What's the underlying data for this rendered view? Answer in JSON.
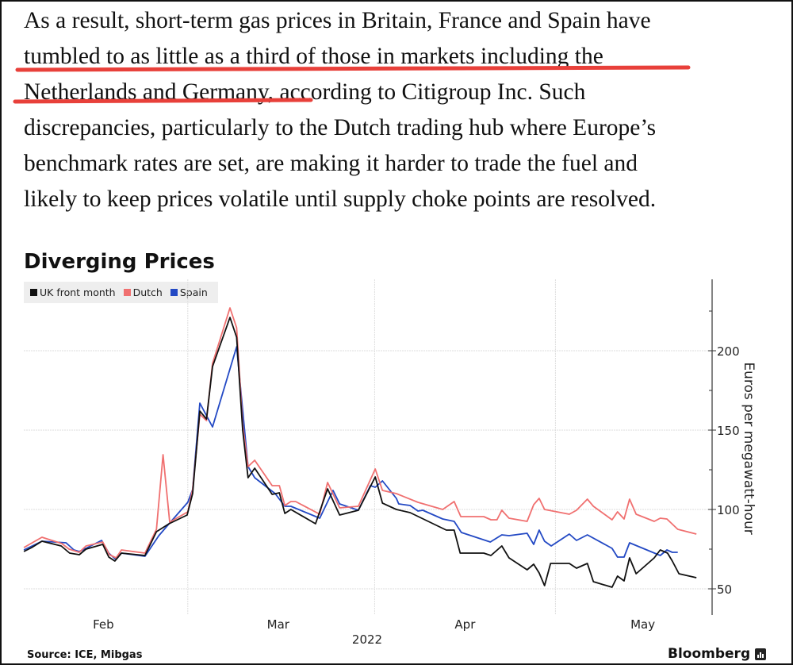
{
  "article": {
    "lines": [
      "As a result, short-term gas prices in Britain, France and Spain have",
      "tumbled to as little as a third of those in markets including the",
      "Netherlands and Germany, according to Citigroup Inc. Such",
      "discrepancies, particularly to the Dutch trading hub where Europe’s",
      "benchmark rates are set, are making it harder to trade the fuel and",
      "likely to keep prices volatile until supply choke points are resolved."
    ],
    "highlight_color": "#e8403a"
  },
  "chart_data": {
    "type": "line",
    "title": "Diverging Prices",
    "ylabel": "Euros per megawatt-hour",
    "xlabel": "2022",
    "x_unit": "days since Feb 1, 2022",
    "ylim": [
      30,
      245
    ],
    "yticks": [
      50,
      100,
      150,
      200
    ],
    "xticks": [
      {
        "label": "Feb",
        "day": 14
      },
      {
        "label": "Mar",
        "day": 43
      },
      {
        "label": "Apr",
        "day": 74
      },
      {
        "label": "May",
        "day": 103.5
      }
    ],
    "x_gridlines_days": [
      28,
      59,
      89
    ],
    "grid": true,
    "legend_position": "top-left",
    "series": [
      {
        "name": "UK front month",
        "color": "#111111",
        "points": [
          [
            0.8,
            73.5
          ],
          [
            2.1,
            76
          ],
          [
            3.8,
            80
          ],
          [
            7,
            77
          ],
          [
            8.4,
            72.5
          ],
          [
            10,
            71.5
          ],
          [
            11.1,
            75
          ],
          [
            13.9,
            78
          ],
          [
            14.9,
            70
          ],
          [
            15.9,
            67.5
          ],
          [
            17,
            72.5
          ],
          [
            20.9,
            71
          ],
          [
            22.8,
            86
          ],
          [
            24.9,
            91
          ],
          [
            27.9,
            96.5
          ],
          [
            28.8,
            110
          ],
          [
            30,
            162
          ],
          [
            31.1,
            157
          ],
          [
            32.1,
            190
          ],
          [
            35,
            221
          ],
          [
            36.1,
            208.5
          ],
          [
            37.1,
            150
          ],
          [
            38,
            120
          ],
          [
            39.1,
            126
          ],
          [
            42,
            109.5
          ],
          [
            43.2,
            110.5
          ],
          [
            44.1,
            97.5
          ],
          [
            45.1,
            100
          ],
          [
            49.2,
            91
          ],
          [
            51.2,
            113
          ],
          [
            53.2,
            96.5
          ],
          [
            56.3,
            99.5
          ],
          [
            59.1,
            120.5
          ],
          [
            60.3,
            104
          ],
          [
            62.6,
            100
          ],
          [
            64.9,
            98
          ],
          [
            70.9,
            87
          ],
          [
            72.2,
            87
          ],
          [
            73.2,
            72.5
          ],
          [
            77.1,
            72.5
          ],
          [
            78.3,
            71
          ],
          [
            80.1,
            77
          ],
          [
            81.3,
            69.5
          ],
          [
            84.3,
            62
          ],
          [
            85.4,
            65.5
          ],
          [
            86.3,
            60
          ],
          [
            87.2,
            52
          ],
          [
            88.2,
            66
          ],
          [
            91.3,
            66
          ],
          [
            92.5,
            63
          ],
          [
            94.3,
            66
          ],
          [
            95.3,
            54.5
          ],
          [
            98.4,
            51
          ],
          [
            99.3,
            58
          ],
          [
            100.4,
            55
          ],
          [
            101.3,
            69.5
          ],
          [
            102.4,
            59.5
          ],
          [
            105.4,
            69.5
          ],
          [
            106.4,
            74.5
          ],
          [
            107.6,
            72.5
          ],
          [
            108.4,
            67.5
          ],
          [
            109.5,
            59.5
          ],
          [
            112.4,
            57
          ]
        ]
      },
      {
        "name": "Dutch",
        "color": "#f07070",
        "points": [
          [
            0.8,
            76
          ],
          [
            3.8,
            82.5
          ],
          [
            7.1,
            78.5
          ],
          [
            8.3,
            75
          ],
          [
            10,
            73
          ],
          [
            11.1,
            77
          ],
          [
            13.9,
            79.5
          ],
          [
            15,
            71.5
          ],
          [
            16.1,
            69.5
          ],
          [
            17,
            74.5
          ],
          [
            20.9,
            72.5
          ],
          [
            22.8,
            87.5
          ],
          [
            23.9,
            134.5
          ],
          [
            25,
            92
          ],
          [
            28,
            98.5
          ],
          [
            28.8,
            112.5
          ],
          [
            30,
            160
          ],
          [
            31.1,
            156
          ],
          [
            32.1,
            192
          ],
          [
            35,
            227
          ],
          [
            36.1,
            214.5
          ],
          [
            37.1,
            153.5
          ],
          [
            38,
            127
          ],
          [
            39.1,
            131
          ],
          [
            42,
            115
          ],
          [
            43.2,
            115
          ],
          [
            44.1,
            102.5
          ],
          [
            45.1,
            105
          ],
          [
            45.9,
            105
          ],
          [
            49.9,
            97
          ],
          [
            51.2,
            117
          ],
          [
            53.2,
            101
          ],
          [
            56.3,
            102
          ],
          [
            59.1,
            125.5
          ],
          [
            60.3,
            112
          ],
          [
            62.6,
            110
          ],
          [
            66.2,
            104.5
          ],
          [
            70.3,
            100
          ],
          [
            72.2,
            105
          ],
          [
            73.3,
            95.5
          ],
          [
            77.1,
            95.5
          ],
          [
            78.3,
            93.5
          ],
          [
            79.3,
            93.5
          ],
          [
            80.1,
            99.5
          ],
          [
            81.3,
            94.5
          ],
          [
            84.3,
            92.5
          ],
          [
            85.4,
            103
          ],
          [
            86.3,
            107
          ],
          [
            87.2,
            100
          ],
          [
            91.3,
            97
          ],
          [
            92.5,
            99.5
          ],
          [
            94.3,
            106.5
          ],
          [
            95.3,
            102
          ],
          [
            98.4,
            93.5
          ],
          [
            99.3,
            98.5
          ],
          [
            100.4,
            94
          ],
          [
            101.3,
            106.5
          ],
          [
            102.4,
            97
          ],
          [
            105.4,
            92.5
          ],
          [
            106.4,
            94.5
          ],
          [
            107.5,
            94
          ],
          [
            109.3,
            87.5
          ],
          [
            112.4,
            84.5
          ]
        ]
      },
      {
        "name": "Spain",
        "color": "#2349c4",
        "points": [
          [
            0.8,
            74.5
          ],
          [
            3.8,
            80
          ],
          [
            7.8,
            79
          ],
          [
            9.1,
            74.5
          ],
          [
            10,
            73.5
          ],
          [
            11.1,
            75.5
          ],
          [
            13.7,
            80.5
          ],
          [
            14.9,
            72.5
          ],
          [
            15.9,
            69
          ],
          [
            17,
            72.5
          ],
          [
            20.9,
            70.5
          ],
          [
            23.2,
            83.5
          ],
          [
            24.9,
            91
          ],
          [
            28,
            104.5
          ],
          [
            28.8,
            112.5
          ],
          [
            30,
            167
          ],
          [
            32.1,
            152
          ],
          [
            36.1,
            202.5
          ],
          [
            38,
            127
          ],
          [
            39.1,
            120
          ],
          [
            42.5,
            110
          ],
          [
            44.1,
            102
          ],
          [
            45.1,
            102
          ],
          [
            49.9,
            94.5
          ],
          [
            52.1,
            112
          ],
          [
            53.2,
            103.5
          ],
          [
            56.3,
            99.5
          ],
          [
            58.3,
            115
          ],
          [
            59.1,
            114
          ],
          [
            60.3,
            118
          ],
          [
            62.6,
            107
          ],
          [
            63,
            103.5
          ],
          [
            64.9,
            102.5
          ],
          [
            66.2,
            99
          ],
          [
            67,
            99.5
          ],
          [
            70.3,
            94
          ],
          [
            72.2,
            92.5
          ],
          [
            73.4,
            85.5
          ],
          [
            78.2,
            79.5
          ],
          [
            80.1,
            84
          ],
          [
            81.3,
            83.5
          ],
          [
            84.3,
            85
          ],
          [
            85.4,
            78
          ],
          [
            86.3,
            87
          ],
          [
            87.2,
            80
          ],
          [
            88.3,
            77
          ],
          [
            91.3,
            84.5
          ],
          [
            92.5,
            80.5
          ],
          [
            94.3,
            84
          ],
          [
            98.4,
            75.5
          ],
          [
            99.3,
            70
          ],
          [
            100.4,
            70
          ],
          [
            101.3,
            79
          ],
          [
            106.4,
            71
          ],
          [
            107.5,
            74.5
          ],
          [
            108.4,
            73
          ],
          [
            109.3,
            73
          ]
        ]
      }
    ],
    "source": "Source: ICE, Mibgas",
    "brand": "Bloomberg"
  }
}
